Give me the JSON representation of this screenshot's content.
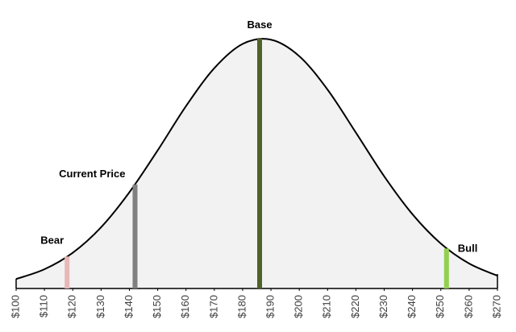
{
  "chart_data": {
    "type": "area",
    "x": [
      100,
      110,
      120,
      130,
      140,
      150,
      160,
      170,
      180,
      190,
      200,
      210,
      220,
      230,
      240,
      250,
      260,
      270
    ],
    "values": [
      3.8,
      7.7,
      14.3,
      24.5,
      38.5,
      55.3,
      73.0,
      88.2,
      97.9,
      99.6,
      93.0,
      79.6,
      62.4,
      44.9,
      29.7,
      18.0,
      10.0,
      5.1
    ],
    "color": "#000000",
    "fill": "#f2f2f2",
    "xlim": [
      100,
      270
    ],
    "ylim": [
      0,
      100
    ],
    "xticks": [
      {
        "value": 100,
        "label": "$100"
      },
      {
        "value": 110,
        "label": "$110"
      },
      {
        "value": 120,
        "label": "$120"
      },
      {
        "value": 130,
        "label": "$130"
      },
      {
        "value": 140,
        "label": "$140"
      },
      {
        "value": 150,
        "label": "$150"
      },
      {
        "value": 160,
        "label": "$160"
      },
      {
        "value": 170,
        "label": "$170"
      },
      {
        "value": 180,
        "label": "$180"
      },
      {
        "value": 190,
        "label": "$190"
      },
      {
        "value": 200,
        "label": "$200"
      },
      {
        "value": 210,
        "label": "$210"
      },
      {
        "value": 220,
        "label": "$220"
      },
      {
        "value": 230,
        "label": "$230"
      },
      {
        "value": 240,
        "label": "$240"
      },
      {
        "value": 250,
        "label": "$250"
      },
      {
        "value": 260,
        "label": "$260"
      },
      {
        "value": 270,
        "label": "$270"
      }
    ],
    "markers": [
      {
        "name": "Bear",
        "x": 118,
        "value": 12.8,
        "color": "#e6b8b7"
      },
      {
        "name": "Current Price",
        "x": 142,
        "value": 41.6,
        "color": "#808080"
      },
      {
        "name": "Base",
        "x": 186,
        "value": 100,
        "color": "#4f6228"
      },
      {
        "name": "Bull",
        "x": 252,
        "value": 16,
        "color": "#92d050"
      }
    ]
  }
}
